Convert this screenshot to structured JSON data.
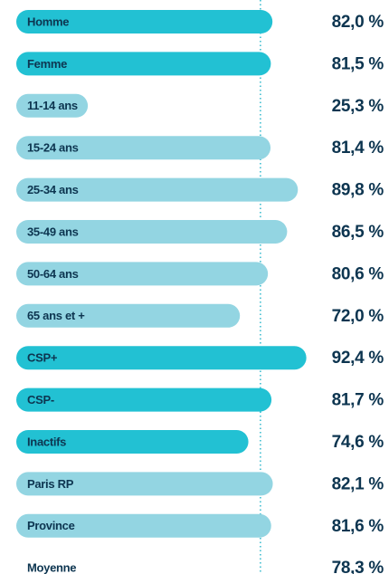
{
  "chart_data": {
    "type": "bar",
    "categories": [
      "Homme",
      "Femme",
      "11-14 ans",
      "15-24 ans",
      "25-34 ans",
      "35-49 ans",
      "50-64 ans",
      "65 ans et +",
      "CSP+",
      "CSP-",
      "Inactifs",
      "Paris RP",
      "Province"
    ],
    "values": [
      82.0,
      81.5,
      25.3,
      81.4,
      89.8,
      86.5,
      80.6,
      72.0,
      92.4,
      81.7,
      74.6,
      82.1,
      81.6
    ],
    "value_labels": [
      "82,0 %",
      "81,5 %",
      "25,3 %",
      "81,4 %",
      "89,8 %",
      "86,5 %",
      "80,6 %",
      "72,0 %",
      "92,4 %",
      "81,7 %",
      "74,6 %",
      "82,1 %",
      "81,6 %"
    ],
    "colors": [
      "#22c1d3",
      "#22c1d3",
      "#93d5e2",
      "#93d5e2",
      "#93d5e2",
      "#93d5e2",
      "#93d5e2",
      "#93d5e2",
      "#22c1d3",
      "#22c1d3",
      "#22c1d3",
      "#93d5e2",
      "#93d5e2"
    ],
    "average": {
      "name": "Moyenne",
      "value": 78.3,
      "value_label": "78,3 %"
    }
  }
}
